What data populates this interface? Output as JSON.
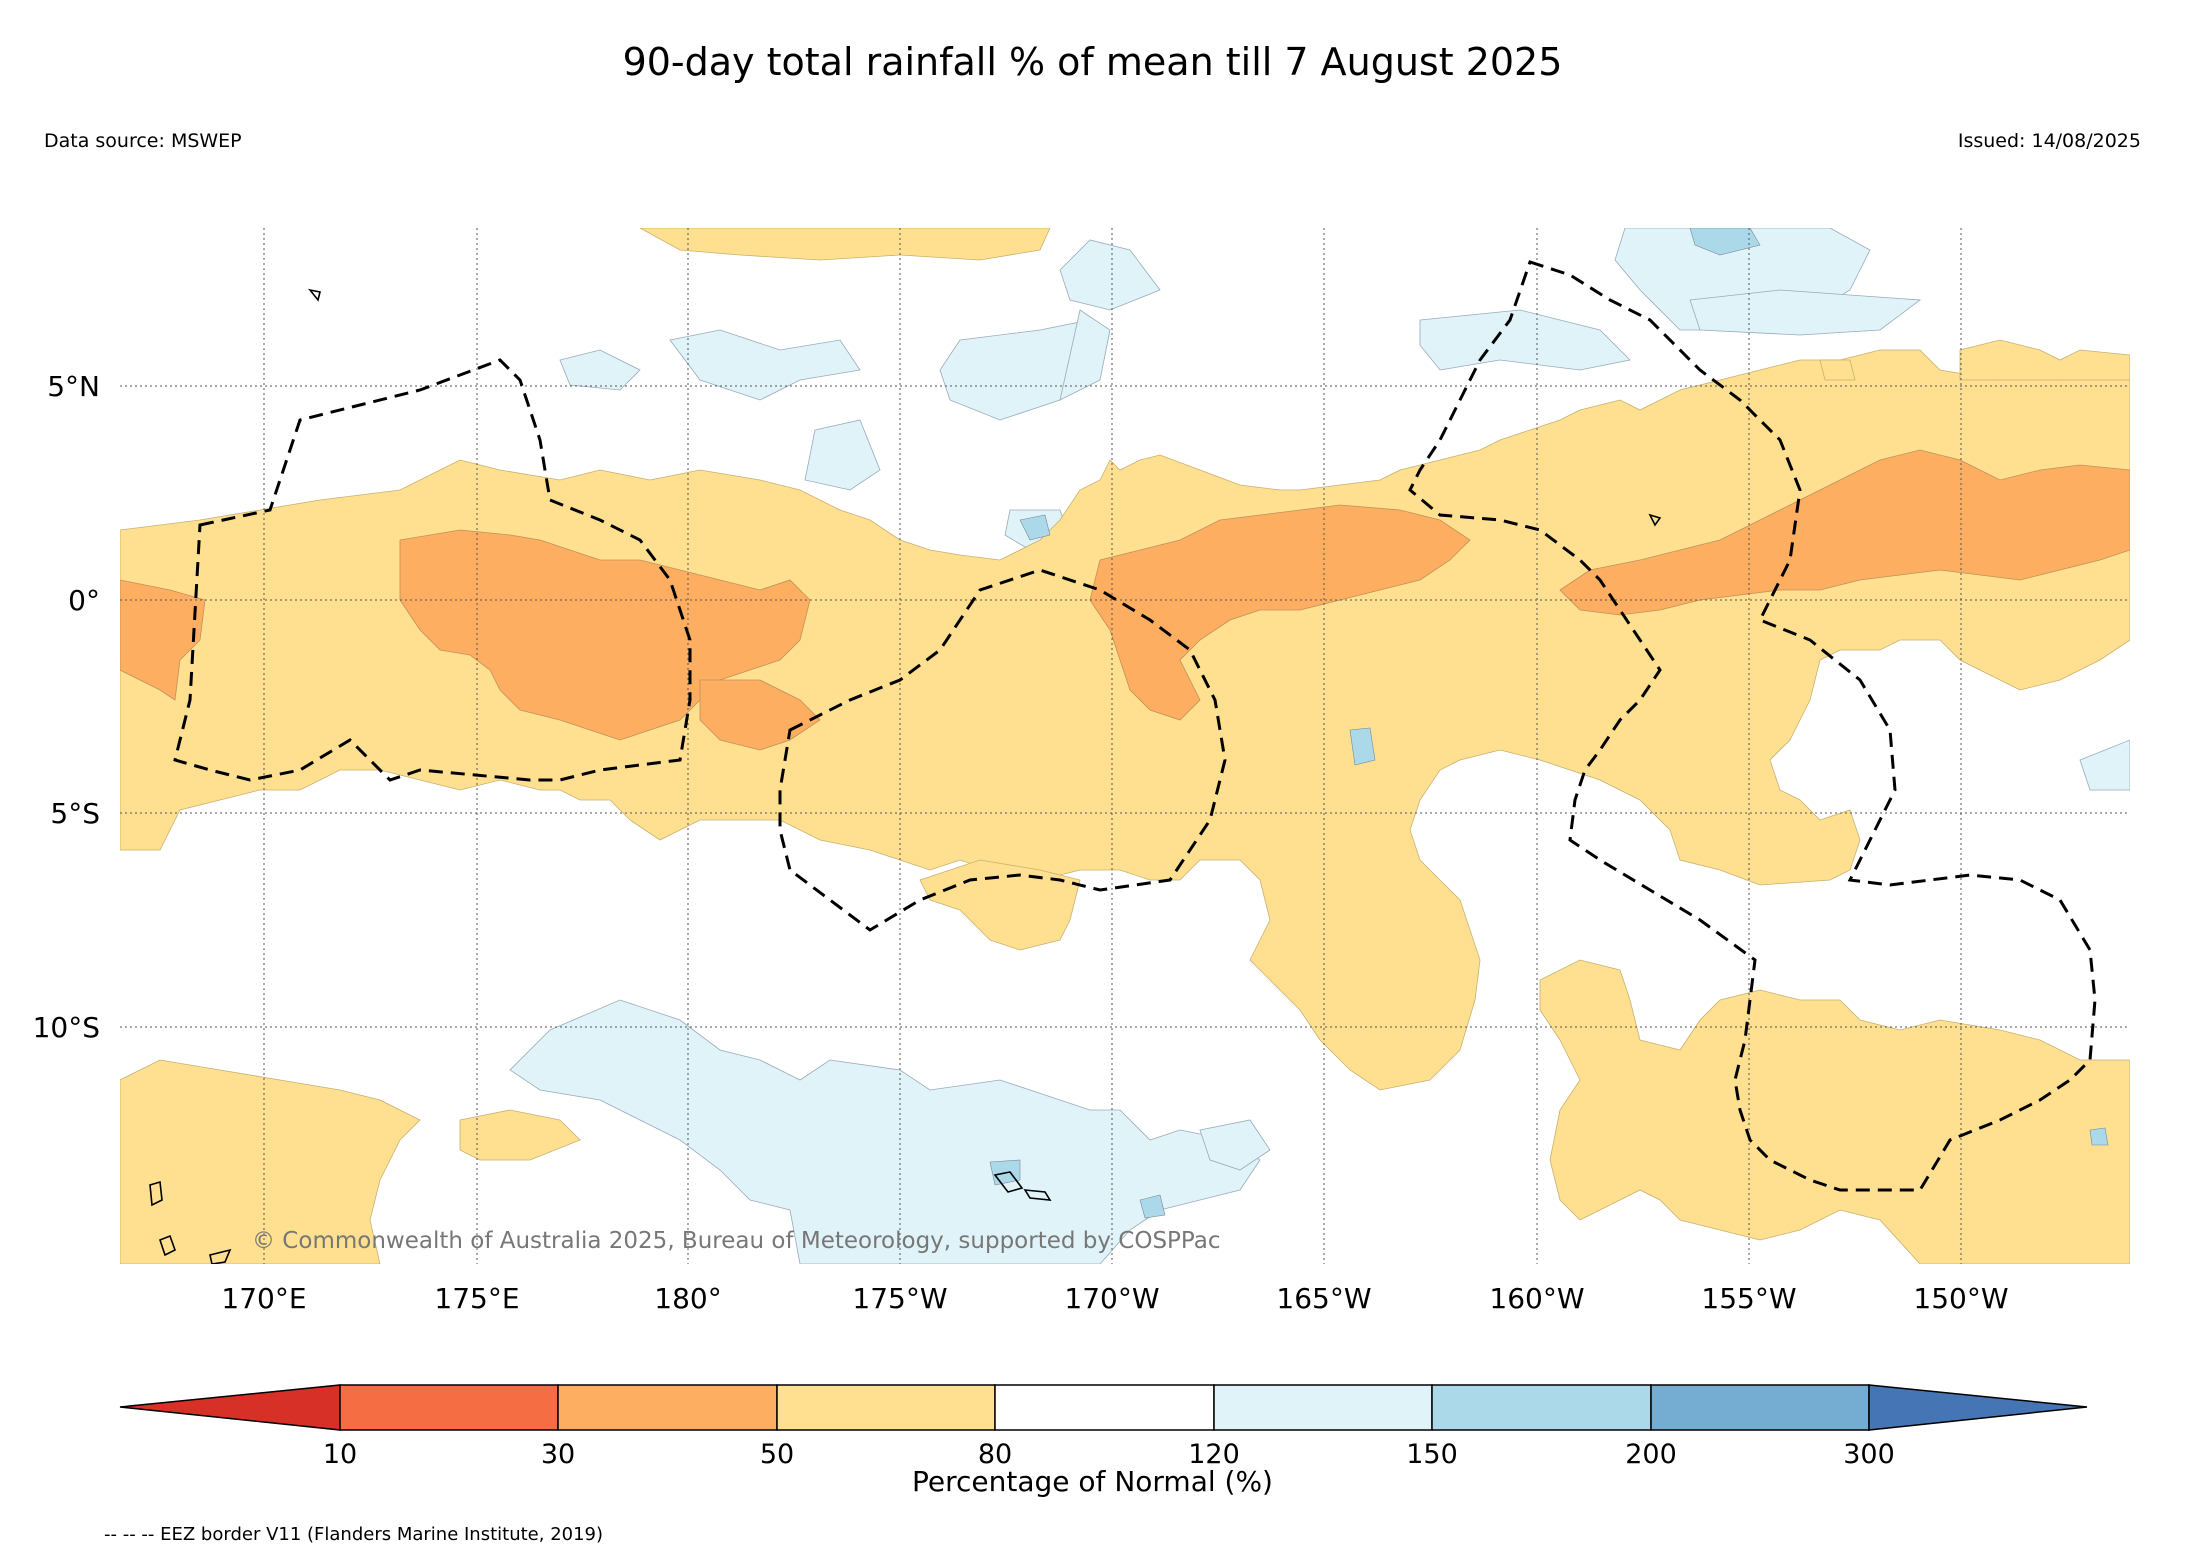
{
  "header": {
    "title": "90-day total rainfall % of mean till 7 August 2025",
    "data_source": "Data source: MSWEP",
    "issued": "Issued: 14/08/2025"
  },
  "map": {
    "lat_labels": [
      "5°N",
      "0°",
      "5°S",
      "10°S"
    ],
    "lon_labels": [
      "170°E",
      "175°E",
      "180°",
      "175°W",
      "170°W",
      "165°W",
      "160°W",
      "155°W",
      "150°W"
    ],
    "copyright": "© Commonwealth of Australia 2025, Bureau of Meteorology, supported by COSPPac",
    "palette": {
      "lt10": "#d73027",
      "10-30": "#f46d43",
      "30-50": "#fdae61",
      "50-80": "#fee090",
      "80-120": "#ffffff",
      "120-150": "#e0f3f8",
      "150-200": "#abd9e9",
      "200-300": "#74add1",
      "gt300": "#4575b4"
    }
  },
  "colorbar": {
    "ticks": [
      "10",
      "30",
      "50",
      "80",
      "120",
      "150",
      "200",
      "300"
    ],
    "label": "Percentage of Normal (%)",
    "colors": [
      "#d73027",
      "#f46d43",
      "#fdae61",
      "#fee090",
      "#ffffff",
      "#e0f3f8",
      "#abd9e9",
      "#74add1",
      "#4575b4"
    ]
  },
  "footer": {
    "legend_note": "-- -- -- EEZ border V11 (Flanders Marine Institute, 2019)"
  }
}
